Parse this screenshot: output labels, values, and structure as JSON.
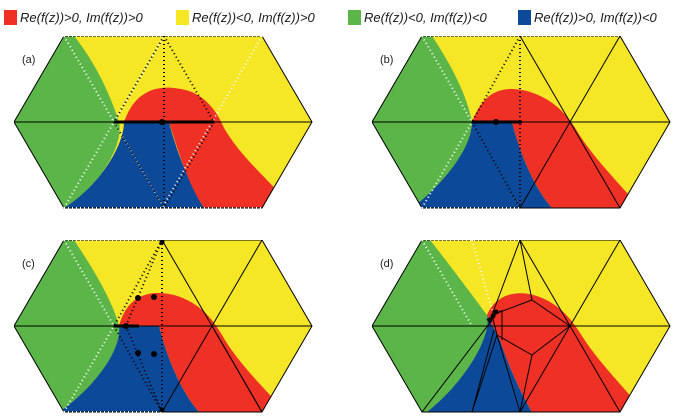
{
  "colors": {
    "red": "#ee3124",
    "yellow": "#f5e626",
    "green": "#5bb548",
    "blue": "#0c4a99",
    "line": "#000000",
    "dotted_white": "#ffffff"
  },
  "legend": [
    {
      "color_key": "red",
      "label": "Re(f(z))>0, Im(f(z))>0"
    },
    {
      "color_key": "yellow",
      "label": "Re(f(z))<0, Im(f(z))>0"
    },
    {
      "color_key": "green",
      "label": "Re(f(z))<0, Im(f(z))<0"
    },
    {
      "color_key": "blue",
      "label": "Re(f(z))>0, Im(f(z))<0"
    }
  ],
  "panels": [
    {
      "label": "(a)"
    },
    {
      "label": "(b)"
    },
    {
      "label": "(c)"
    },
    {
      "label": "(d)"
    }
  ]
}
